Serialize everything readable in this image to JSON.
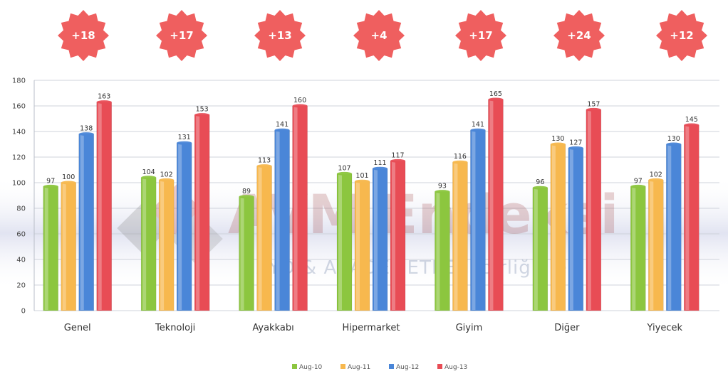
{
  "chart_data": {
    "type": "bar",
    "categories": [
      "Genel",
      "Teknoloji",
      "Ayakkabı",
      "Hipermarket",
      "Giyim",
      "Diğer",
      "Yiyecek"
    ],
    "series": [
      {
        "name": "Aug-10",
        "color": "#8cc63f",
        "values": [
          97,
          104,
          89,
          107,
          93,
          96,
          97
        ]
      },
      {
        "name": "Aug-11",
        "color": "#f7b84e",
        "values": [
          100,
          102,
          113,
          101,
          116,
          130,
          102
        ]
      },
      {
        "name": "Aug-12",
        "color": "#4a86d8",
        "values": [
          138,
          131,
          141,
          111,
          141,
          127,
          130
        ]
      },
      {
        "name": "Aug-13",
        "color": "#e84c55",
        "values": [
          163,
          153,
          160,
          117,
          165,
          157,
          145
        ]
      }
    ],
    "data_labels": [
      [
        "97",
        "100",
        "138",
        "163"
      ],
      [
        "104",
        "102",
        "131",
        "153"
      ],
      [
        "89",
        "113",
        "141",
        "160"
      ],
      [
        "107",
        "101",
        "111",
        "117"
      ],
      [
        "93",
        "116",
        "141",
        "165"
      ],
      [
        "96",
        "130",
        "127",
        "157"
      ],
      [
        "97",
        "102",
        "130",
        "145"
      ]
    ],
    "badges": [
      "+18",
      "+17",
      "+13",
      "+4",
      "+17",
      "+24",
      "+12"
    ],
    "badge_color": "#ef5f5f",
    "ylim": [
      0,
      180
    ],
    "yticks": [
      "0",
      "20",
      "40",
      "60",
      "80",
      "100",
      "120",
      "140",
      "160",
      "180"
    ],
    "grid": true,
    "legend_position": "bottom-center",
    "watermark": {
      "title": "AVM Endeksi",
      "subtitle": "AYD & AKADEMETRE işbirliği ile"
    }
  }
}
